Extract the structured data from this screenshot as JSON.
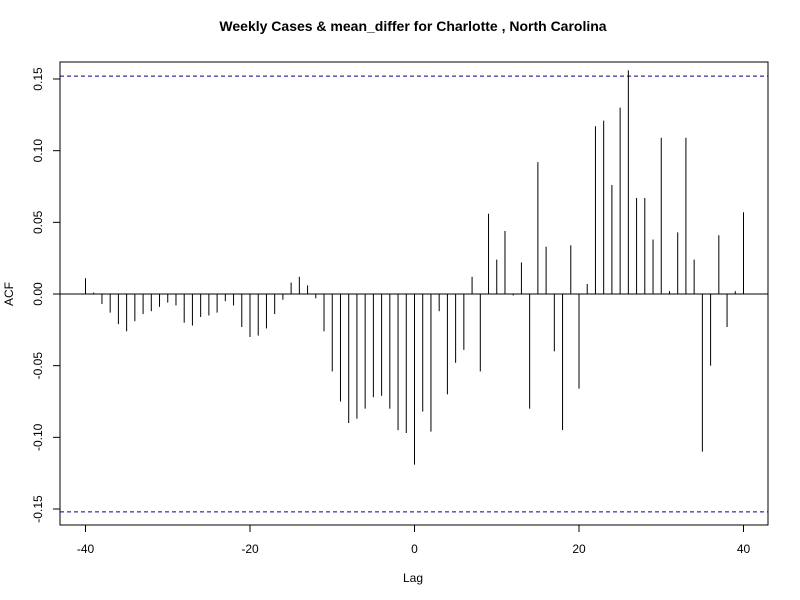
{
  "chart_data": {
    "type": "bar",
    "subtype": "cross-correlation lag plot",
    "title": "Weekly Cases & mean_differ for Charlotte , North Carolina",
    "xlabel": "Lag",
    "ylabel": "ACF",
    "xlim": [
      -40,
      40
    ],
    "ylim": [
      -0.15,
      0.15
    ],
    "x_ticks": [
      -40,
      -20,
      0,
      20,
      40
    ],
    "x_tick_labels": [
      "-40",
      "-20",
      "0",
      "20",
      "40"
    ],
    "y_ticks": [
      -0.15,
      -0.1,
      -0.05,
      0.0,
      0.05,
      0.1,
      0.15
    ],
    "y_tick_labels": [
      "-0.15",
      "-0.10",
      "-0.05",
      "0.00",
      "0.05",
      "0.10",
      "0.15"
    ],
    "confidence_bound": 0.152,
    "confidence_line_color": "#00008b",
    "zero_line": true,
    "grid": false,
    "lags": [
      -40,
      -39,
      -38,
      -37,
      -36,
      -35,
      -34,
      -33,
      -32,
      -31,
      -30,
      -29,
      -28,
      -27,
      -26,
      -25,
      -24,
      -23,
      -22,
      -21,
      -20,
      -19,
      -18,
      -17,
      -16,
      -15,
      -14,
      -13,
      -12,
      -11,
      -10,
      -9,
      -8,
      -7,
      -6,
      -5,
      -4,
      -3,
      -2,
      -1,
      0,
      1,
      2,
      3,
      4,
      5,
      6,
      7,
      8,
      9,
      10,
      11,
      12,
      13,
      14,
      15,
      16,
      17,
      18,
      19,
      20,
      21,
      22,
      23,
      24,
      25,
      26,
      27,
      28,
      29,
      30,
      31,
      32,
      33,
      34,
      35,
      36,
      37,
      38,
      39,
      40
    ],
    "values": [
      0.011,
      0.001,
      -0.007,
      -0.013,
      -0.021,
      -0.026,
      -0.019,
      -0.014,
      -0.012,
      -0.009,
      -0.006,
      -0.008,
      -0.02,
      -0.022,
      -0.016,
      -0.015,
      -0.013,
      -0.005,
      -0.008,
      -0.023,
      -0.03,
      -0.029,
      -0.024,
      -0.014,
      -0.004,
      0.008,
      0.012,
      0.006,
      -0.003,
      -0.026,
      -0.054,
      -0.075,
      -0.09,
      -0.087,
      -0.08,
      -0.072,
      -0.071,
      -0.08,
      -0.095,
      -0.097,
      -0.119,
      -0.082,
      -0.096,
      -0.012,
      -0.07,
      -0.048,
      -0.039,
      0.012,
      -0.054,
      0.056,
      0.024,
      0.044,
      -0.001,
      0.022,
      -0.08,
      0.092,
      0.033,
      -0.04,
      -0.095,
      0.034,
      -0.066,
      0.007,
      0.117,
      0.121,
      0.076,
      0.13,
      0.156,
      0.067,
      0.067,
      0.038,
      0.109,
      0.002,
      0.043,
      0.109,
      0.024,
      -0.11,
      -0.05,
      0.041,
      -0.023,
      0.002,
      0.057
    ]
  }
}
